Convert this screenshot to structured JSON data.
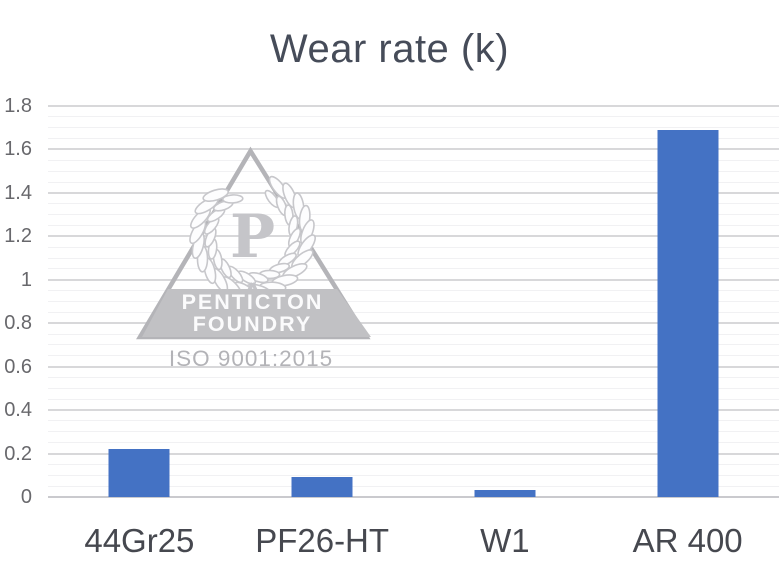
{
  "chart_data": {
    "type": "bar",
    "title": "Wear rate (k)",
    "categories": [
      "44Gr25",
      "PF26-HT",
      "W1",
      "AR 400"
    ],
    "values": [
      0.22,
      0.09,
      0.03,
      1.69
    ],
    "xlabel": "",
    "ylabel": "",
    "ylim": [
      0,
      1.8
    ],
    "y_major_step": 0.2,
    "y_minor_step": 0.05,
    "y_tick_labels": [
      "0",
      "0.2",
      "0.4",
      "0.6",
      "0.8",
      "1",
      "1.2",
      "1.4",
      "1.6",
      "1.8"
    ],
    "grid": true,
    "legend": false,
    "bar_color": "#4472c4",
    "background": "#ffffff"
  },
  "watermark": {
    "monogram": "P",
    "org_line1": "PENTICTON",
    "org_line2": "FOUNDRY",
    "certification": "ISO 9001:2015",
    "banner_color": "#c1c1c4",
    "outline_color": "#b4b4b8"
  },
  "colors": {
    "title": "#464c59",
    "y_axis_labels": "#68686c",
    "x_axis_labels": "#46484f",
    "grid_major": "#d8d8da",
    "grid_minor": "#f1f1f3",
    "grid_baseline": "#cacace"
  }
}
